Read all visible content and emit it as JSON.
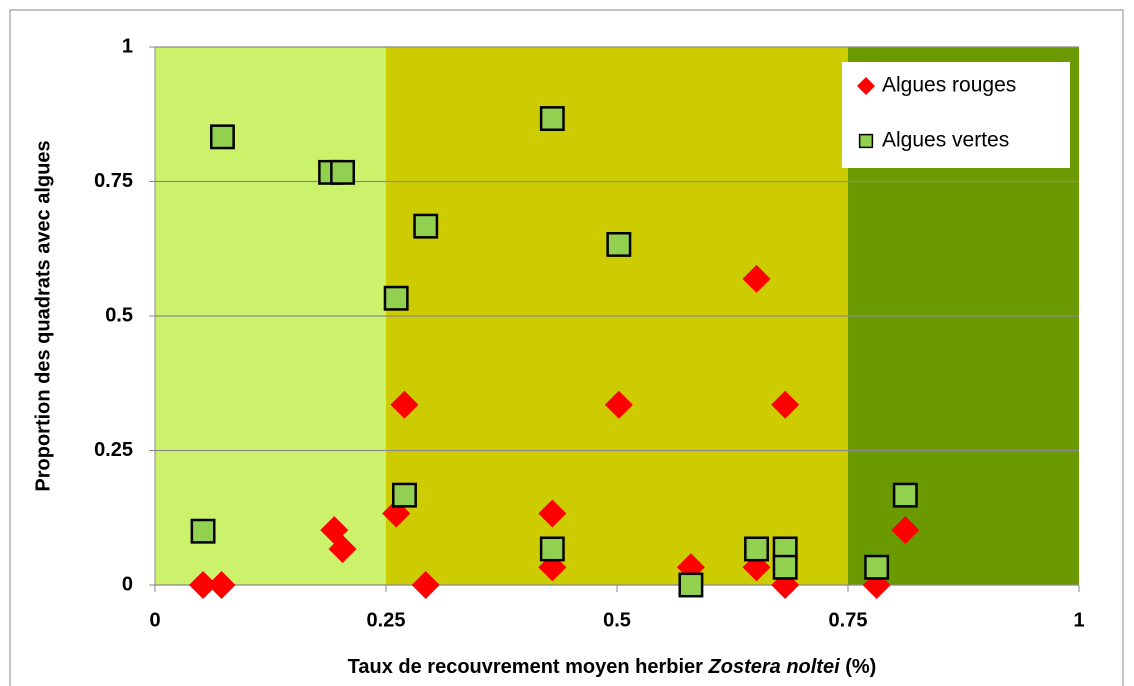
{
  "chart_data": {
    "type": "scatter",
    "xlabel": [
      "Taux de recouvrement moyen herbier ",
      "Zostera noltei",
      " (%)"
    ],
    "ylabel": "Proportion des quadrats avec algues",
    "xlim": [
      0,
      1
    ],
    "ylim": [
      0,
      1
    ],
    "xticks": [
      0,
      0.25,
      0.5,
      0.75,
      1
    ],
    "yticks": [
      0,
      0.25,
      0.5,
      0.75,
      1
    ],
    "grid": true,
    "legend": "upper right",
    "bands": [
      {
        "from": 0,
        "to": 0.25,
        "color": "#ccf26c"
      },
      {
        "from": 0.25,
        "to": 0.75,
        "color": "#cccc00"
      },
      {
        "from": 0.75,
        "to": 1,
        "color": "#6b9a00"
      }
    ],
    "series": [
      {
        "name": "Algues rouges",
        "color": "#ff0000",
        "marker": "diamond",
        "x": [
          0.052,
          0.072,
          0.194,
          0.203,
          0.261,
          0.27,
          0.293,
          0.43,
          0.43,
          0.502,
          0.58,
          0.651,
          0.651,
          0.682,
          0.682,
          0.781,
          0.812
        ],
        "values": [
          0,
          0,
          0.102,
          0.067,
          0.133,
          0.335,
          0,
          0.133,
          0.033,
          0.335,
          0.033,
          0.569,
          0.033,
          0.335,
          0,
          0,
          0.102
        ]
      },
      {
        "name": "Algues vertes",
        "color": "#92d050",
        "marker": "square",
        "x": [
          0.052,
          0.073,
          0.19,
          0.203,
          0.293,
          0.261,
          0.27,
          0.43,
          0.43,
          0.502,
          0.58,
          0.651,
          0.682,
          0.682,
          0.781,
          0.812
        ],
        "values": [
          0.1,
          0.833,
          0.767,
          0.767,
          0.667,
          0.533,
          0.167,
          0.867,
          0.067,
          0.633,
          0,
          0.067,
          0.067,
          0.033,
          0.033,
          0.167
        ]
      }
    ]
  }
}
